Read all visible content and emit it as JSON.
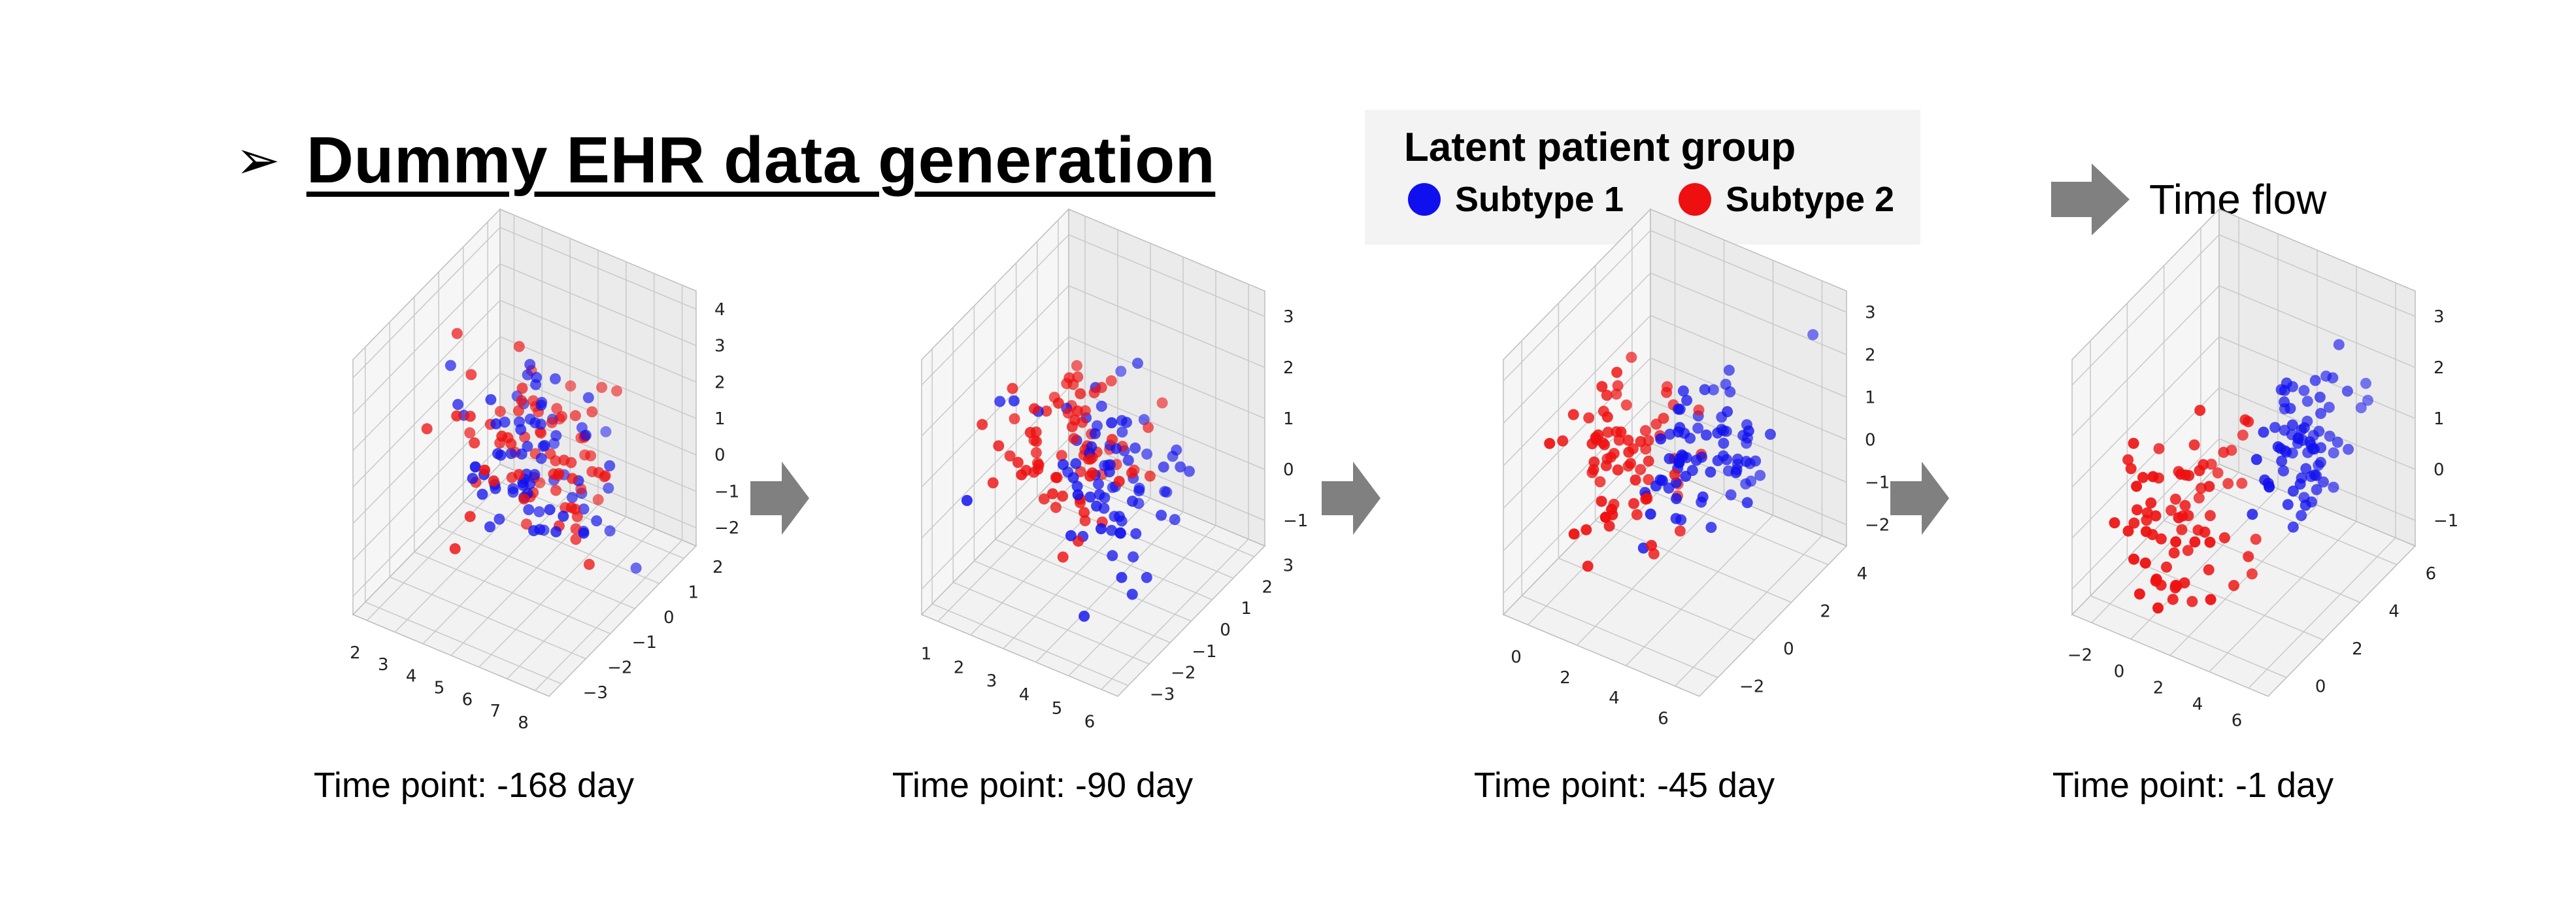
{
  "header": {
    "title_marker": "➢",
    "title": "Dummy EHR data generation"
  },
  "legend": {
    "title": "Latent patient group",
    "items": [
      {
        "label": "Subtype 1",
        "color": "#1010ee"
      },
      {
        "label": "Subtype 2",
        "color": "#ee1010"
      }
    ]
  },
  "time_flow": {
    "label": "Time flow",
    "arrow_color": "#808080"
  },
  "chart_data": [
    {
      "type": "scatter",
      "caption": "Time point: -168 day",
      "xticks": [
        "2",
        "3",
        "4",
        "5",
        "6",
        "7",
        "8"
      ],
      "yticks": [
        "−3",
        "−2",
        "−1",
        "0",
        "1",
        "2"
      ],
      "zticks": [
        "−2",
        "−1",
        "0",
        "1",
        "2",
        "3",
        "4"
      ],
      "xlim": [
        1.5,
        8.5
      ],
      "ylim": [
        -3.5,
        2.5
      ],
      "zlim": [
        -2.6,
        4.4
      ],
      "clusters": [
        {
          "name": "Subtype 1",
          "color": "#1010ee",
          "center": [
            5,
            0,
            0.5
          ],
          "spread": [
            1.2,
            0.9,
            1.0
          ],
          "count": 75
        },
        {
          "name": "Subtype 2",
          "color": "#ee1010",
          "center": [
            5,
            0,
            0.7
          ],
          "spread": [
            1.2,
            0.9,
            1.0
          ],
          "count": 75
        }
      ]
    },
    {
      "type": "scatter",
      "caption": "Time point: -90 day",
      "xticks": [
        "1",
        "2",
        "3",
        "4",
        "5",
        "6"
      ],
      "yticks": [
        "−3",
        "−2",
        "−1",
        "0",
        "1",
        "2",
        "3"
      ],
      "zticks": [
        "−1",
        "0",
        "1",
        "2",
        "3"
      ],
      "xlim": [
        0.5,
        6.5
      ],
      "ylim": [
        -3.5,
        3.5
      ],
      "zlim": [
        -1.8,
        3.6
      ],
      "clusters": [
        {
          "name": "Subtype 1",
          "color": "#1010ee",
          "center": [
            4.0,
            0.3,
            0.4
          ],
          "spread": [
            1.0,
            0.9,
            0.8
          ],
          "count": 75
        },
        {
          "name": "Subtype 2",
          "color": "#ee1010",
          "center": [
            3.0,
            -0.3,
            1.0
          ],
          "spread": [
            1.0,
            0.9,
            0.8
          ],
          "count": 75
        }
      ]
    },
    {
      "type": "scatter",
      "caption": "Time point: -45 day",
      "xticks": [
        "0",
        "2",
        "4",
        "6"
      ],
      "yticks": [
        "−2",
        "0",
        "2",
        "4"
      ],
      "zticks": [
        "−2",
        "−1",
        "0",
        "1",
        "2",
        "3"
      ],
      "xlim": [
        -1.5,
        7.5
      ],
      "ylim": [
        -3,
        5
      ],
      "zlim": [
        -2.6,
        3.6
      ],
      "clusters": [
        {
          "name": "Subtype 1",
          "color": "#1010ee",
          "center": [
            4.5,
            1.0,
            0.8
          ],
          "spread": [
            1.2,
            1.2,
            0.9
          ],
          "count": 75
        },
        {
          "name": "Subtype 2",
          "color": "#ee1010",
          "center": [
            2.0,
            -0.5,
            0.6
          ],
          "spread": [
            1.2,
            1.2,
            0.9
          ],
          "count": 75
        }
      ]
    },
    {
      "type": "scatter",
      "caption": "Time point: -1 day",
      "xticks": [
        "−2",
        "0",
        "2",
        "4",
        "6"
      ],
      "yticks": [
        "0",
        "2",
        "4",
        "6"
      ],
      "zticks": [
        "−1",
        "0",
        "1",
        "2",
        "3"
      ],
      "xlim": [
        -3,
        7
      ],
      "ylim": [
        -1,
        7
      ],
      "zlim": [
        -1.8,
        3.6
      ],
      "clusters": [
        {
          "name": "Subtype 1",
          "color": "#1010ee",
          "center": [
            4.5,
            3.5,
            1.2
          ],
          "spread": [
            0.9,
            1.0,
            0.7
          ],
          "count": 75
        },
        {
          "name": "Subtype 2",
          "color": "#ee1010",
          "center": [
            1.0,
            0.5,
            0.4
          ],
          "spread": [
            1.2,
            1.2,
            0.9
          ],
          "count": 75
        }
      ]
    }
  ]
}
